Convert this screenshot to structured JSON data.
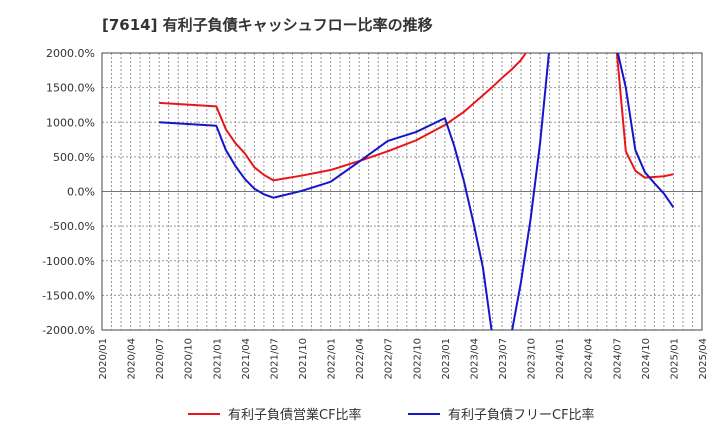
{
  "chart_data": {
    "type": "line",
    "title": "[7614]  有利子負債キャッシュフロー比率の推移",
    "xlabel": "",
    "ylabel": "",
    "grid": true,
    "legend_position": "bottom",
    "ylim": [
      -2000,
      2000
    ],
    "y_ticks": [
      "2000.0%",
      "1500.0%",
      "1000.0%",
      "500.0%",
      "0.0%",
      "-500.0%",
      "-1000.0%",
      "-1500.0%",
      "-2000.0%"
    ],
    "x_ticks": [
      "2020/01",
      "2020/04",
      "2020/07",
      "2020/10",
      "2021/01",
      "2021/04",
      "2021/07",
      "2021/10",
      "2022/01",
      "2022/04",
      "2022/07",
      "2022/10",
      "2023/01",
      "2023/04",
      "2023/07",
      "2023/10",
      "2024/01",
      "2024/04",
      "2024/07",
      "2024/10",
      "2025/01",
      "2025/04"
    ],
    "series": [
      {
        "name": "有利子負債営業CF比率",
        "color": "#e8161a",
        "points": [
          [
            "2020/07",
            1280
          ],
          [
            "2021/01",
            1230
          ],
          [
            "2021/02",
            900
          ],
          [
            "2021/03",
            700
          ],
          [
            "2021/04",
            550
          ],
          [
            "2021/05",
            350
          ],
          [
            "2021/06",
            240
          ],
          [
            "2021/07",
            160
          ],
          [
            "2021/10",
            230
          ],
          [
            "2022/01",
            310
          ],
          [
            "2022/04",
            440
          ],
          [
            "2022/07",
            580
          ],
          [
            "2022/10",
            740
          ],
          [
            "2023/01",
            960
          ],
          [
            "2023/03",
            1150
          ],
          [
            "2023/05",
            1390
          ],
          [
            "2023/06",
            1510
          ],
          [
            "2023/07",
            1640
          ],
          [
            "2023/08",
            1760
          ],
          [
            "2023/09",
            1900
          ],
          [
            "2023/10",
            2100
          ],
          [
            "2024/07",
            2100
          ],
          [
            "2024/08",
            580
          ],
          [
            "2024/09",
            300
          ],
          [
            "2024/10",
            200
          ],
          [
            "2024/12",
            220
          ],
          [
            "2025/01",
            250
          ]
        ]
      },
      {
        "name": "有利子負債フリーCF比率",
        "color": "#1515cc",
        "points": [
          [
            "2020/07",
            1000
          ],
          [
            "2021/01",
            950
          ],
          [
            "2021/02",
            600
          ],
          [
            "2021/03",
            370
          ],
          [
            "2021/04",
            180
          ],
          [
            "2021/05",
            40
          ],
          [
            "2021/06",
            -40
          ],
          [
            "2021/07",
            -90
          ],
          [
            "2021/10",
            10
          ],
          [
            "2022/01",
            140
          ],
          [
            "2022/04",
            430
          ],
          [
            "2022/07",
            730
          ],
          [
            "2022/10",
            860
          ],
          [
            "2023/01",
            1060
          ],
          [
            "2023/02",
            650
          ],
          [
            "2023/03",
            150
          ],
          [
            "2023/04",
            -450
          ],
          [
            "2023/05",
            -1100
          ],
          [
            "2023/06",
            -2100
          ],
          [
            "2023/07",
            -2100
          ],
          [
            "2023/08",
            -2050
          ],
          [
            "2023/09",
            -1300
          ],
          [
            "2023/10",
            -400
          ],
          [
            "2023/11",
            700
          ],
          [
            "2023/12",
            2100
          ],
          [
            "2024/07",
            2100
          ],
          [
            "2024/08",
            1500
          ],
          [
            "2024/09",
            600
          ],
          [
            "2024/10",
            280
          ],
          [
            "2024/11",
            120
          ],
          [
            "2024/12",
            -30
          ],
          [
            "2025/01",
            -230
          ]
        ]
      }
    ]
  }
}
